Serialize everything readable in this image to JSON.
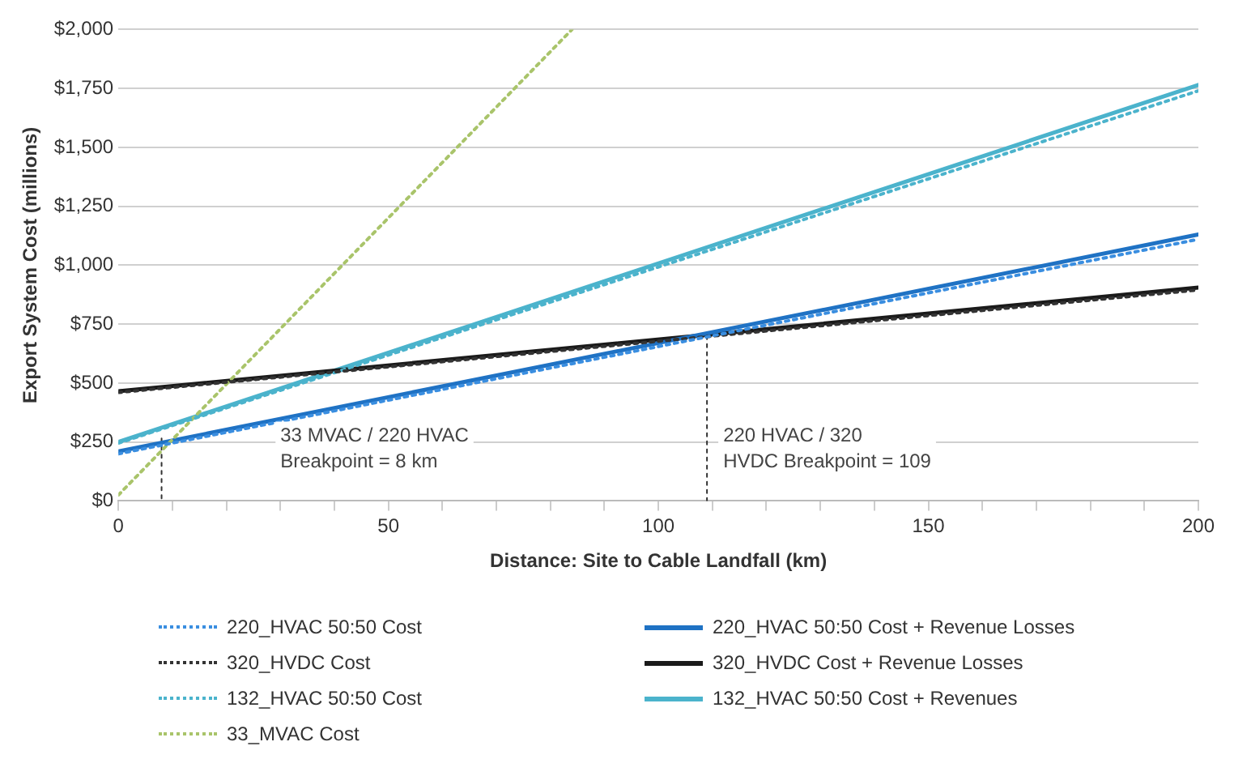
{
  "chart_data": {
    "type": "line",
    "xlabel": "Distance: Site to Cable Landfall (km)",
    "ylabel": "Export System Cost (millions)",
    "xlim": [
      0,
      200
    ],
    "xticks": [
      0,
      {
        "value": 10,
        "label": null
      },
      {
        "value": 20,
        "label": null
      },
      {
        "value": 30,
        "label": null
      },
      {
        "value": 40,
        "label": null
      },
      50,
      {
        "value": 60,
        "label": null
      },
      {
        "value": 70,
        "label": null
      },
      {
        "value": 80,
        "label": null
      },
      {
        "value": 90,
        "label": null
      },
      100,
      {
        "value": 110,
        "label": null
      },
      {
        "value": 120,
        "label": null
      },
      {
        "value": 130,
        "label": null
      },
      {
        "value": 140,
        "label": null
      },
      150,
      {
        "value": 160,
        "label": null
      },
      {
        "value": 170,
        "label": null
      },
      {
        "value": 180,
        "label": null
      },
      {
        "value": 190,
        "label": null
      },
      200
    ],
    "ylim": [
      0,
      2000
    ],
    "yticks": [
      {
        "value": 0,
        "label": "$0"
      },
      {
        "value": 250,
        "label": "$250"
      },
      {
        "value": 500,
        "label": "$500"
      },
      {
        "value": 750,
        "label": "$750"
      },
      {
        "value": 1000,
        "label": "$1,000"
      },
      {
        "value": 1250,
        "label": "$1,250"
      },
      {
        "value": 1500,
        "label": "$1,500"
      },
      {
        "value": 1750,
        "label": "$1,750"
      },
      {
        "value": 2000,
        "label": "$2,000"
      }
    ],
    "grid": "y",
    "legend": "bottom",
    "marker": "none",
    "series": [
      {
        "name": "220_HVAC 50:50 Cost",
        "color": "#3a8ee0",
        "line_style": "dotted",
        "x": [
          0,
          200
        ],
        "values": [
          200,
          1110
        ]
      },
      {
        "name": "320_HVDC Cost",
        "color": "#333333",
        "line_style": "dotted",
        "x": [
          0,
          200
        ],
        "values": [
          460,
          895
        ]
      },
      {
        "name": "132_HVAC 50:50 Cost",
        "color": "#4bb3cc",
        "line_style": "dotted",
        "x": [
          0,
          200
        ],
        "values": [
          245,
          1740
        ]
      },
      {
        "name": "33_MVAC Cost",
        "color": "#a9c46a",
        "line_style": "dotted",
        "x": [
          0,
          84
        ],
        "values": [
          25,
          2000
        ]
      },
      {
        "name": "220_HVAC 50:50 Cost + Revenue Losses",
        "color": "#1f72c4",
        "line_style": "solid",
        "x": [
          0,
          200
        ],
        "values": [
          210,
          1130
        ]
      },
      {
        "name": "320_HVDC Cost + Revenue Losses",
        "color": "#1a1a1a",
        "line_style": "solid",
        "x": [
          0,
          200
        ],
        "values": [
          465,
          905
        ]
      },
      {
        "name": "132_HVAC 50:50 Cost + Revenues",
        "color": "#4bb3cc",
        "line_style": "solid",
        "x": [
          0,
          200
        ],
        "values": [
          250,
          1765
        ]
      },
      {
        "color": "#333333",
        "line_style": "dotted",
        "x": [
          8,
          8
        ],
        "values": [
          265,
          0
        ]
      },
      {
        "color": "#333333",
        "line_style": "dotted",
        "x": [
          109,
          109
        ],
        "values": [
          700,
          0
        ]
      }
    ],
    "annotations": [
      "33 MVAC / 220 HVAC\nBreakpoint = 8 km",
      "220 HVAC / 320\nHVDC Breakpoint = 109"
    ]
  }
}
